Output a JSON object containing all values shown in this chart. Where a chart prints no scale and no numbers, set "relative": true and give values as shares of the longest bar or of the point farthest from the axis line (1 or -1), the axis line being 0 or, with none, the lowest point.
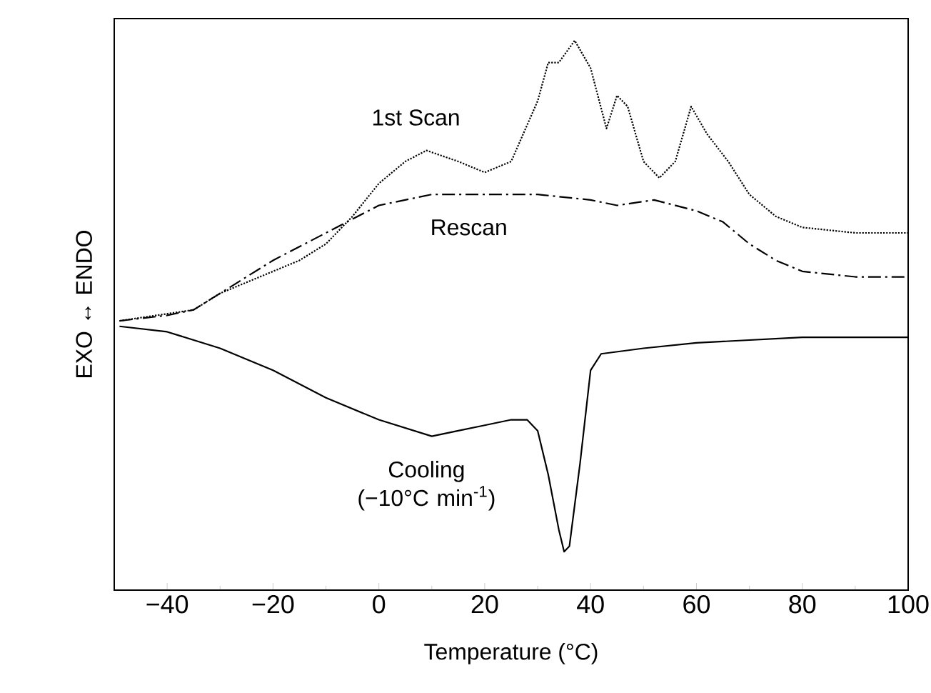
{
  "chart_data": {
    "type": "line",
    "relative": true,
    "xlabel": "Temperature (°C)",
    "ylabel": "EXO ↔ ENDO",
    "xlim": [
      -50,
      100
    ],
    "xticks": [
      {
        "value": -40,
        "label": "−40"
      },
      {
        "value": -20,
        "label": "−20"
      },
      0,
      20,
      40,
      60,
      80,
      100
    ],
    "grid": false,
    "legend": false,
    "marker": "none",
    "series": [
      {
        "name": "1st Scan",
        "color": "#000000",
        "line_style": "dotted",
        "x": [
          -49,
          -35,
          -30,
          -25,
          -20,
          -15,
          -10,
          -5,
          0,
          5,
          9,
          15,
          20,
          25,
          30,
          32,
          34,
          37,
          40,
          43,
          45,
          47,
          50,
          53,
          56,
          59,
          62,
          66,
          70,
          75,
          80,
          90,
          100
        ],
        "values": [
          0.49,
          0.51,
          0.54,
          0.56,
          0.58,
          0.6,
          0.63,
          0.68,
          0.74,
          0.78,
          0.8,
          0.78,
          0.76,
          0.78,
          0.89,
          0.96,
          0.96,
          1.0,
          0.95,
          0.84,
          0.9,
          0.88,
          0.78,
          0.75,
          0.78,
          0.88,
          0.83,
          0.78,
          0.72,
          0.68,
          0.66,
          0.65,
          0.65
        ]
      },
      {
        "name": "Rescan",
        "color": "#000000",
        "line_style": "dashdot",
        "x": [
          -49,
          -40,
          -35,
          -30,
          -20,
          -10,
          0,
          10,
          20,
          30,
          40,
          45,
          52,
          60,
          65,
          70,
          75,
          80,
          90,
          100
        ],
        "values": [
          0.49,
          0.5,
          0.51,
          0.54,
          0.6,
          0.65,
          0.7,
          0.72,
          0.72,
          0.72,
          0.71,
          0.7,
          0.71,
          0.69,
          0.67,
          0.63,
          0.6,
          0.58,
          0.57,
          0.57
        ]
      },
      {
        "name": "Cooling (−10°C min$^{-1}$)",
        "color": "#000000",
        "line_style": "solid",
        "x": [
          -49,
          -40,
          -30,
          -20,
          -10,
          0,
          10,
          15,
          20,
          25,
          28,
          30,
          32,
          34,
          35,
          36,
          38,
          40,
          42,
          50,
          60,
          80,
          100
        ],
        "values": [
          0.48,
          0.47,
          0.44,
          0.4,
          0.35,
          0.31,
          0.28,
          0.29,
          0.3,
          0.31,
          0.31,
          0.29,
          0.21,
          0.11,
          0.07,
          0.08,
          0.23,
          0.4,
          0.43,
          0.44,
          0.45,
          0.46,
          0.46
        ]
      }
    ]
  }
}
